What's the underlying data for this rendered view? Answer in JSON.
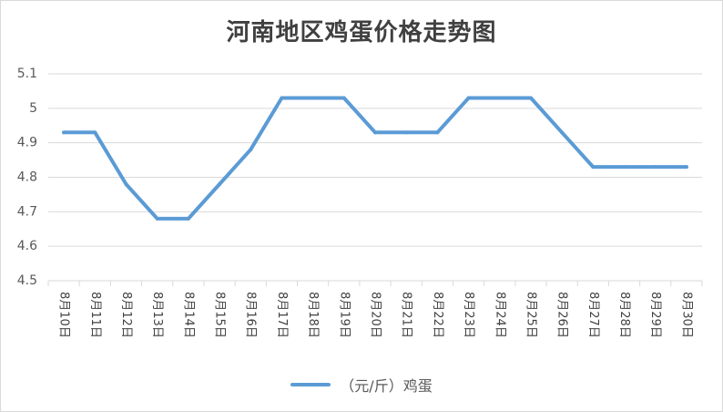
{
  "chart_data": {
    "type": "line",
    "title": "河南地区鸡蛋价格走势图",
    "xlabel": "",
    "ylabel": "",
    "categories": [
      "8月10日",
      "8月11日",
      "8月12日",
      "8月13日",
      "8月14日",
      "8月15日",
      "8月16日",
      "8月17日",
      "8月18日",
      "8月19日",
      "8月20日",
      "8月21日",
      "8月22日",
      "8月23日",
      "8月24日",
      "8月25日",
      "8月26日",
      "8月27日",
      "8月28日",
      "8月29日",
      "8月30日"
    ],
    "series": [
      {
        "name": "（元/斤）鸡蛋",
        "values": [
          4.93,
          4.93,
          4.78,
          4.68,
          4.68,
          4.78,
          4.88,
          5.03,
          5.03,
          5.03,
          4.93,
          4.93,
          4.93,
          5.03,
          5.03,
          5.03,
          4.93,
          4.83,
          4.83,
          4.83,
          4.83
        ],
        "color": "#5b9bd5"
      }
    ],
    "ylim": [
      4.5,
      5.1
    ],
    "yticks": [
      "4.5",
      "4.6",
      "4.7",
      "4.8",
      "4.9",
      "5",
      "5.1"
    ],
    "grid": true,
    "legend": "bottom"
  }
}
